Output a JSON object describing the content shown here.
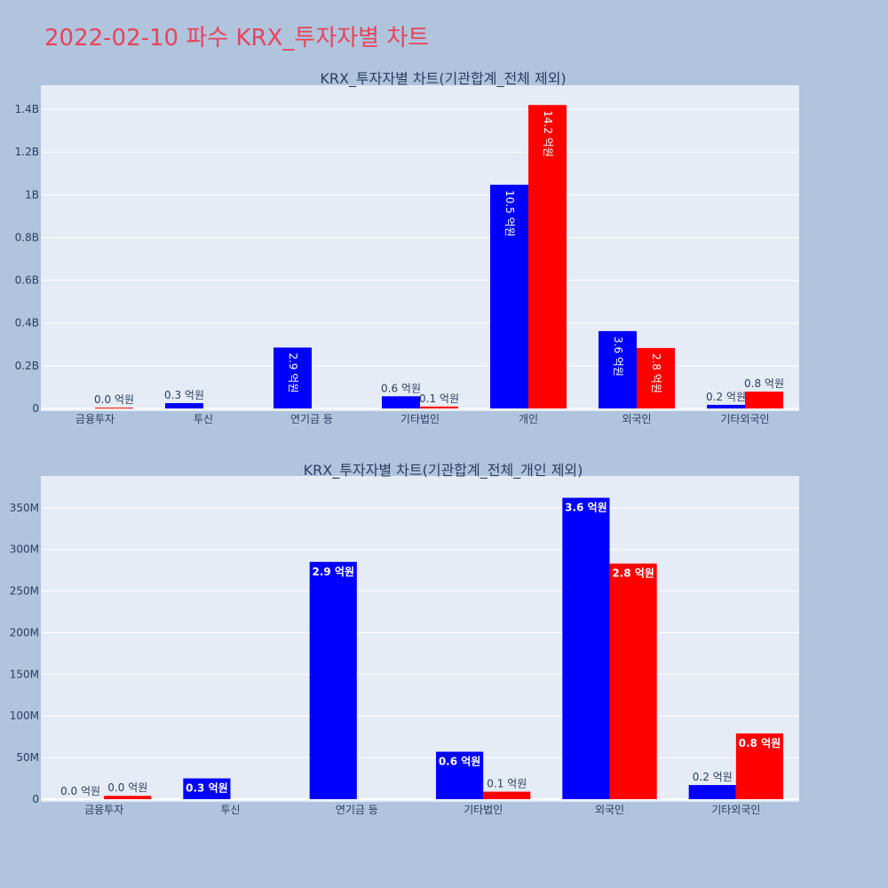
{
  "page": {
    "title": "2022-02-10 파수 KRX_투자자별 차트"
  },
  "colors": {
    "buy": "#0000ff",
    "sell": "#ff0000",
    "plot_bg": "#e5ecf6",
    "page_bg": "#b0c4de",
    "title": "#e8445a"
  },
  "chart_data": [
    {
      "type": "bar",
      "title": "KRX_투자자별 차트(기관합계_전체 제외)",
      "categories": [
        "금융투자",
        "투신",
        "연기금 등",
        "기타법인",
        "개인",
        "외국인",
        "기타외국인"
      ],
      "series": [
        {
          "color": "#0000ff",
          "values": [
            0,
            25000000,
            285000000,
            57000000,
            1047000000,
            362000000,
            17000000
          ],
          "labels": [
            "",
            "0.3 억원",
            "2.9 억원",
            "0.6 억원",
            "10.5 억원",
            "3.6 억원",
            "0.2 억원"
          ]
        },
        {
          "color": "#ff0000",
          "values": [
            4000000,
            0,
            0,
            9000000,
            1420000000,
            283000000,
            79000000
          ],
          "labels": [
            "0.0 억원",
            "",
            "",
            "0.1 억원",
            "14.2 억원",
            "2.8 억원",
            "0.8 억원"
          ]
        }
      ],
      "ylim": [
        0,
        1500000000
      ],
      "yticks": [
        0,
        200000000,
        400000000,
        600000000,
        800000000,
        1000000000,
        1200000000,
        1400000000
      ],
      "ytick_labels": [
        "0",
        "0.2B",
        "0.4B",
        "0.6B",
        "0.8B",
        "1B",
        "1.2B",
        "1.4B"
      ],
      "xlabel": "",
      "ylabel": "",
      "grid": true
    },
    {
      "type": "bar",
      "title": "KRX_투자자별 차트(기관합계_전체_개인 제외)",
      "categories": [
        "금융투자",
        "투신",
        "연기금 등",
        "기타법인",
        "외국인",
        "기타외국인"
      ],
      "series": [
        {
          "color": "#0000ff",
          "values": [
            0,
            25000000,
            285000000,
            57000000,
            362000000,
            17000000
          ],
          "labels": [
            "0.0 억원",
            "0.3 억원",
            "2.9 억원",
            "0.6 억원",
            "3.6 억원",
            "0.2 억원"
          ]
        },
        {
          "color": "#ff0000",
          "values": [
            4000000,
            0,
            0,
            9000000,
            283000000,
            79000000
          ],
          "labels": [
            "0.0 억원",
            "",
            "",
            "0.1 억원",
            "2.8 억원",
            "0.8 억원"
          ]
        }
      ],
      "ylim": [
        0,
        385000000
      ],
      "yticks": [
        0,
        50000000,
        100000000,
        150000000,
        200000000,
        250000000,
        300000000,
        350000000
      ],
      "ytick_labels": [
        "0",
        "50M",
        "100M",
        "150M",
        "200M",
        "250M",
        "300M",
        "350M"
      ],
      "xlabel": "",
      "ylabel": "",
      "grid": true
    }
  ]
}
